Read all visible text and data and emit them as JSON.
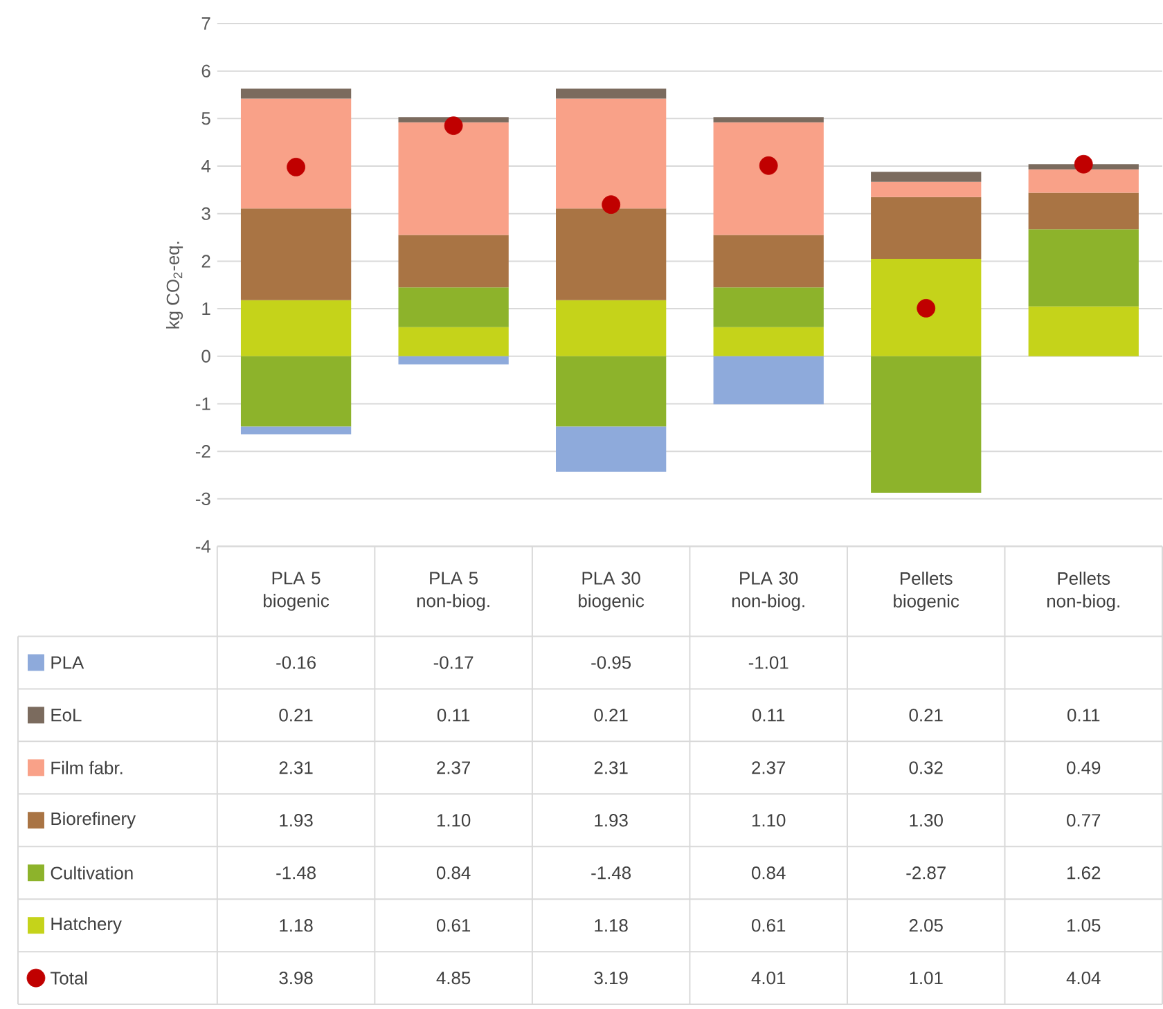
{
  "chart_data": {
    "type": "bar",
    "stacked": true,
    "ylabel": "kg CO$_{2}$-eq.",
    "categories": [
      "PLA 5 biogenic",
      "PLA 5 non-biog.",
      "PLA 30 biogenic",
      "PLA 30 non-biog.",
      "Pellets biogenic",
      "Pellets non-biog."
    ],
    "series": [
      {
        "name": "Hatchery",
        "color": "#c5d31a",
        "values": [
          1.18,
          0.61,
          1.18,
          0.61,
          2.05,
          1.05
        ],
        "value_labels": [
          "1.18",
          "0.61",
          "1.18",
          "0.61",
          "2.05",
          "1.05"
        ]
      },
      {
        "name": "Cultivation",
        "color": "#8db32b",
        "values": [
          -1.48,
          0.84,
          -1.48,
          0.84,
          -2.87,
          1.62
        ],
        "value_labels": [
          "-1.48",
          "0.84",
          "-1.48",
          "0.84",
          "-2.87",
          "1.62"
        ]
      },
      {
        "name": "Biorefinery",
        "color": "#a97444",
        "values": [
          1.93,
          1.1,
          1.93,
          1.1,
          1.3,
          0.77
        ],
        "value_labels": [
          "1.93",
          "1.10",
          "1.93",
          "1.10",
          "1.30",
          "0.77"
        ]
      },
      {
        "name": "Film fabr.",
        "color": "#f9a188",
        "values": [
          2.31,
          2.37,
          2.31,
          2.37,
          0.32,
          0.49
        ],
        "value_labels": [
          "2.31",
          "2.37",
          "2.31",
          "2.37",
          "0.32",
          "0.49"
        ]
      },
      {
        "name": "EoL",
        "color": "#7b6b5e",
        "values": [
          0.21,
          0.11,
          0.21,
          0.11,
          0.21,
          0.11
        ],
        "value_labels": [
          "0.21",
          "0.11",
          "0.21",
          "0.11",
          "0.21",
          "0.11"
        ]
      },
      {
        "name": "PLA",
        "color": "#8eaadb",
        "values": [
          -0.16,
          -0.17,
          -0.95,
          -1.01,
          null,
          null
        ],
        "value_labels": [
          "-0.16",
          "-0.17",
          "-0.95",
          "-1.01",
          null,
          null
        ]
      },
      {
        "name": "Total",
        "type": "scatter",
        "marker": "circle",
        "color": "#c00000",
        "values": [
          3.98,
          4.85,
          3.19,
          4.01,
          1.01,
          4.04
        ],
        "value_labels": [
          "3.98",
          "4.85",
          "3.19",
          "4.01",
          "1.01",
          "4.04"
        ]
      }
    ],
    "ylim": [
      -4,
      7
    ],
    "yticks": [
      -4,
      -3,
      -2,
      -1,
      0,
      1,
      2,
      3,
      4,
      5,
      6,
      7
    ],
    "grid": "y",
    "legend": "bottom"
  }
}
